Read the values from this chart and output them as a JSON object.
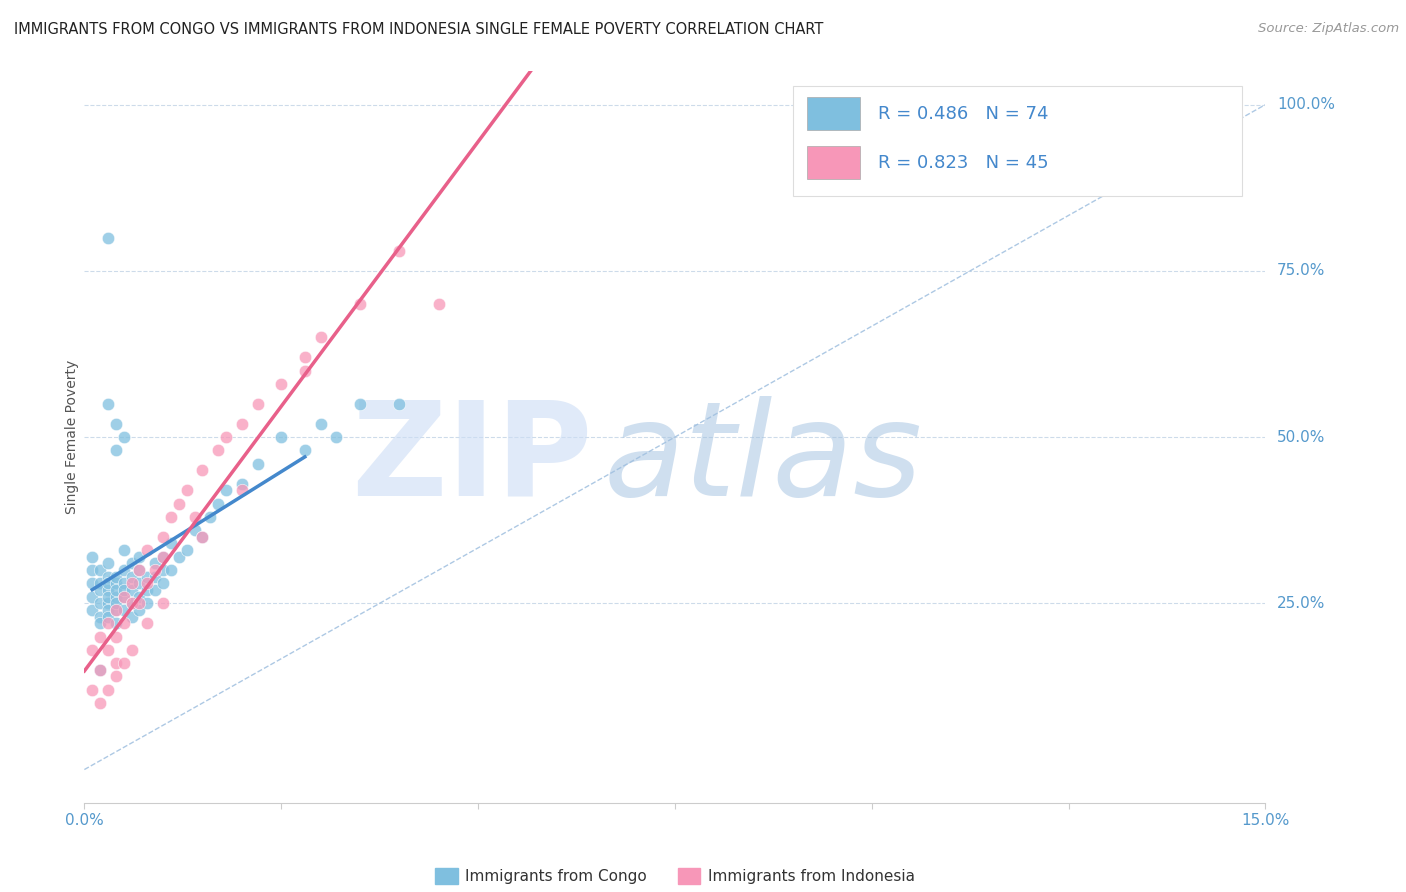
{
  "title": "IMMIGRANTS FROM CONGO VS IMMIGRANTS FROM INDONESIA SINGLE FEMALE POVERTY CORRELATION CHART",
  "source": "Source: ZipAtlas.com",
  "ylabel": "Single Female Poverty",
  "xlim": [
    0.0,
    0.15
  ],
  "ylim": [
    -0.05,
    1.05
  ],
  "yplot_min": 0.0,
  "yplot_max": 1.0,
  "xticks": [
    0.0,
    0.025,
    0.05,
    0.075,
    0.1,
    0.125,
    0.15
  ],
  "xticklabels": [
    "0.0%",
    "",
    "",
    "",
    "",
    "",
    "15.0%"
  ],
  "yticks_right": [
    0.25,
    0.5,
    0.75,
    1.0
  ],
  "yticklabels_right": [
    "25.0%",
    "50.0%",
    "75.0%",
    "100.0%"
  ],
  "congo_color": "#7fbfdf",
  "indonesia_color": "#f797b8",
  "congo_line_color": "#4488cc",
  "indonesia_line_color": "#e8608a",
  "diag_color": "#99bbdd",
  "congo_R": 0.486,
  "congo_N": 74,
  "indonesia_R": 0.823,
  "indonesia_N": 45,
  "background_color": "#ffffff",
  "grid_color": "#c8d8e8",
  "watermark_zip": "ZIP",
  "watermark_atlas": "atlas",
  "watermark_color_zip": "#c8ddf0",
  "watermark_color_atlas": "#a8c8e8",
  "title_fontsize": 10.5,
  "axis_label_color": "#5599cc",
  "legend_text_color": "#4488cc",
  "source_color": "#999999",
  "congo_scatter_x": [
    0.001,
    0.001,
    0.001,
    0.001,
    0.001,
    0.002,
    0.002,
    0.002,
    0.002,
    0.002,
    0.002,
    0.003,
    0.003,
    0.003,
    0.003,
    0.003,
    0.003,
    0.003,
    0.003,
    0.004,
    0.004,
    0.004,
    0.004,
    0.004,
    0.004,
    0.004,
    0.005,
    0.005,
    0.005,
    0.005,
    0.005,
    0.005,
    0.006,
    0.006,
    0.006,
    0.006,
    0.006,
    0.007,
    0.007,
    0.007,
    0.007,
    0.007,
    0.008,
    0.008,
    0.008,
    0.009,
    0.009,
    0.009,
    0.01,
    0.01,
    0.01,
    0.011,
    0.011,
    0.012,
    0.013,
    0.014,
    0.015,
    0.016,
    0.017,
    0.018,
    0.02,
    0.022,
    0.025,
    0.028,
    0.03,
    0.032,
    0.035,
    0.04,
    0.002,
    0.003,
    0.003,
    0.004,
    0.004,
    0.005
  ],
  "congo_scatter_y": [
    0.28,
    0.3,
    0.32,
    0.26,
    0.24,
    0.3,
    0.28,
    0.25,
    0.27,
    0.23,
    0.22,
    0.29,
    0.27,
    0.25,
    0.24,
    0.28,
    0.26,
    0.23,
    0.31,
    0.28,
    0.26,
    0.24,
    0.29,
    0.27,
    0.25,
    0.22,
    0.28,
    0.26,
    0.3,
    0.24,
    0.33,
    0.27,
    0.29,
    0.25,
    0.27,
    0.31,
    0.23,
    0.28,
    0.26,
    0.24,
    0.3,
    0.32,
    0.27,
    0.29,
    0.25,
    0.29,
    0.27,
    0.31,
    0.3,
    0.28,
    0.32,
    0.3,
    0.34,
    0.32,
    0.33,
    0.36,
    0.35,
    0.38,
    0.4,
    0.42,
    0.43,
    0.46,
    0.5,
    0.48,
    0.52,
    0.5,
    0.55,
    0.55,
    0.15,
    0.55,
    0.8,
    0.48,
    0.52,
    0.5
  ],
  "indonesia_scatter_x": [
    0.001,
    0.001,
    0.002,
    0.002,
    0.003,
    0.003,
    0.004,
    0.004,
    0.004,
    0.005,
    0.005,
    0.006,
    0.006,
    0.007,
    0.007,
    0.008,
    0.008,
    0.009,
    0.01,
    0.01,
    0.011,
    0.012,
    0.013,
    0.014,
    0.015,
    0.017,
    0.018,
    0.02,
    0.022,
    0.025,
    0.028,
    0.03,
    0.035,
    0.04,
    0.045,
    0.002,
    0.003,
    0.004,
    0.005,
    0.006,
    0.008,
    0.01,
    0.015,
    0.02,
    0.028
  ],
  "indonesia_scatter_y": [
    0.12,
    0.18,
    0.15,
    0.2,
    0.18,
    0.22,
    0.2,
    0.16,
    0.24,
    0.22,
    0.26,
    0.25,
    0.28,
    0.25,
    0.3,
    0.28,
    0.33,
    0.3,
    0.32,
    0.35,
    0.38,
    0.4,
    0.42,
    0.38,
    0.45,
    0.48,
    0.5,
    0.52,
    0.55,
    0.58,
    0.62,
    0.65,
    0.7,
    0.78,
    0.7,
    0.1,
    0.12,
    0.14,
    0.16,
    0.18,
    0.22,
    0.25,
    0.35,
    0.42,
    0.6
  ]
}
